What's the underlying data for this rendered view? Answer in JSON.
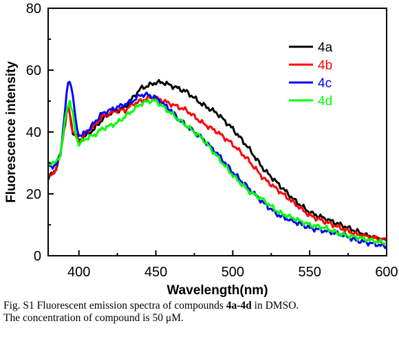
{
  "chart_data": {
    "type": "line",
    "title": "",
    "xlabel": "Wavelength(nm)",
    "ylabel": "Fluorescence intensity",
    "xlim": [
      380,
      600
    ],
    "ylim": [
      0,
      80
    ],
    "xticks": [
      "400",
      "450",
      "500",
      "550",
      "600"
    ],
    "yticks": [
      "0",
      "20",
      "40",
      "60",
      "80"
    ],
    "grid": false,
    "legend_position": "top-right",
    "series": [
      {
        "name": "4a",
        "color": "#000000",
        "x": [
          380,
          385,
          388,
          390,
          392,
          393,
          394,
          396,
          398,
          400,
          402,
          405,
          410,
          415,
          420,
          425,
          430,
          435,
          440,
          445,
          450,
          455,
          460,
          465,
          470,
          475,
          480,
          490,
          500,
          510,
          520,
          530,
          540,
          550,
          560,
          570,
          580,
          590,
          600
        ],
        "y": [
          25,
          28,
          33,
          40,
          46,
          48,
          46,
          40,
          39,
          37,
          38,
          39,
          41,
          44,
          46,
          47,
          48,
          51,
          54,
          55,
          56,
          56,
          55,
          54,
          53,
          51,
          49,
          46,
          41,
          35,
          28,
          23,
          18,
          14,
          12,
          10,
          8,
          6,
          5
        ]
      },
      {
        "name": "4b",
        "color": "#ff0000",
        "x": [
          380,
          385,
          388,
          390,
          392,
          393,
          394,
          396,
          398,
          400,
          402,
          405,
          410,
          415,
          420,
          425,
          430,
          435,
          440,
          445,
          450,
          455,
          460,
          465,
          470,
          475,
          480,
          490,
          500,
          510,
          520,
          530,
          540,
          550,
          560,
          570,
          580,
          590,
          600
        ],
        "y": [
          25,
          28,
          33,
          40,
          46,
          48,
          46,
          40,
          39,
          37,
          38,
          40,
          42,
          45,
          46,
          47,
          47,
          49,
          50,
          51,
          51,
          50,
          49,
          48,
          47,
          45,
          43,
          40,
          36,
          31,
          25,
          21,
          17,
          13,
          11,
          9,
          7,
          6,
          5
        ]
      },
      {
        "name": "4c",
        "color": "#0000ff",
        "x": [
          380,
          385,
          388,
          390,
          392,
          393,
          394,
          396,
          398,
          400,
          402,
          405,
          410,
          415,
          420,
          425,
          430,
          435,
          440,
          445,
          450,
          455,
          460,
          465,
          470,
          475,
          480,
          490,
          500,
          510,
          520,
          530,
          540,
          550,
          560,
          570,
          580,
          590,
          600
        ],
        "y": [
          29,
          29,
          33,
          42,
          52,
          56,
          57,
          52,
          43,
          39,
          39,
          40,
          43,
          46,
          47,
          48,
          49,
          50,
          52,
          52,
          51,
          49,
          47,
          44,
          42,
          40,
          38,
          33,
          27,
          22,
          17,
          13,
          11,
          9,
          8,
          7,
          5,
          4,
          3
        ]
      },
      {
        "name": "4d",
        "color": "#00ff00",
        "x": [
          380,
          385,
          388,
          390,
          392,
          393,
          394,
          396,
          398,
          400,
          402,
          405,
          410,
          415,
          420,
          425,
          430,
          435,
          440,
          445,
          450,
          455,
          460,
          465,
          470,
          475,
          480,
          490,
          500,
          510,
          520,
          530,
          540,
          550,
          560,
          570,
          580,
          590,
          600
        ],
        "y": [
          30,
          30,
          33,
          40,
          47,
          49,
          50,
          46,
          39,
          36,
          37,
          38,
          39,
          41,
          42,
          43,
          45,
          47,
          49,
          50,
          50,
          48,
          46,
          44,
          42,
          40,
          38,
          32,
          26,
          21,
          18,
          14,
          12,
          10,
          9,
          7,
          6,
          5,
          4
        ]
      }
    ]
  },
  "caption": {
    "prefix": "Fig. S1 Fluorescent emission spectra of compounds ",
    "compounds": "4a-4d",
    "middle": " in DMSO.",
    "line2": "The concentration of compound is 50 μM."
  }
}
